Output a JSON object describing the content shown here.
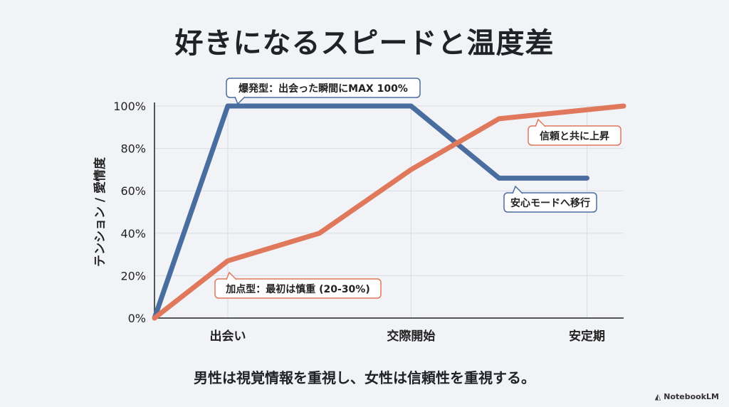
{
  "title": "好きになるスピードと温度差",
  "caption": "男性は視覚情報を重視し、女性は信頼性を重視する。",
  "logo": "NotebookLM",
  "chart_data": {
    "type": "line",
    "title": "好きになるスピードと温度差",
    "ylabel": "テンション / 愛情度",
    "xlabel": "",
    "ylim": [
      0,
      100
    ],
    "xlim": [
      0,
      6.4
    ],
    "yticks": [
      0,
      20,
      40,
      60,
      80,
      100
    ],
    "ytick_labels": [
      "0%",
      "20%",
      "40%",
      "60%",
      "80%",
      "100%"
    ],
    "xticks": [
      1,
      3.5,
      5.9
    ],
    "xtick_labels": [
      "出会い",
      "交際開始",
      "安定期"
    ],
    "grid": true,
    "series": [
      {
        "color": "#4a6d9f",
        "x": [
          0,
          1,
          3.5,
          4.7,
          5.9
        ],
        "y": [
          0,
          100,
          100,
          66,
          66
        ]
      },
      {
        "color": "#e0785c",
        "x": [
          0,
          1,
          2.25,
          3.5,
          4.7,
          6.4
        ],
        "y": [
          0,
          27,
          40,
          70,
          94,
          100
        ]
      }
    ],
    "annotations": [
      {
        "text": "爆発型：出会った瞬間にMAX 100%",
        "series": 0,
        "color": "#4a6d9f"
      },
      {
        "text": "安心モードへ移行",
        "series": 0,
        "color": "#4a6d9f"
      },
      {
        "text": "信頼と共に上昇",
        "series": 1,
        "color": "#e0785c"
      },
      {
        "text": "加点型：最初は慎重 (20-30%)",
        "series": 1,
        "color": "#e0785c"
      }
    ]
  }
}
